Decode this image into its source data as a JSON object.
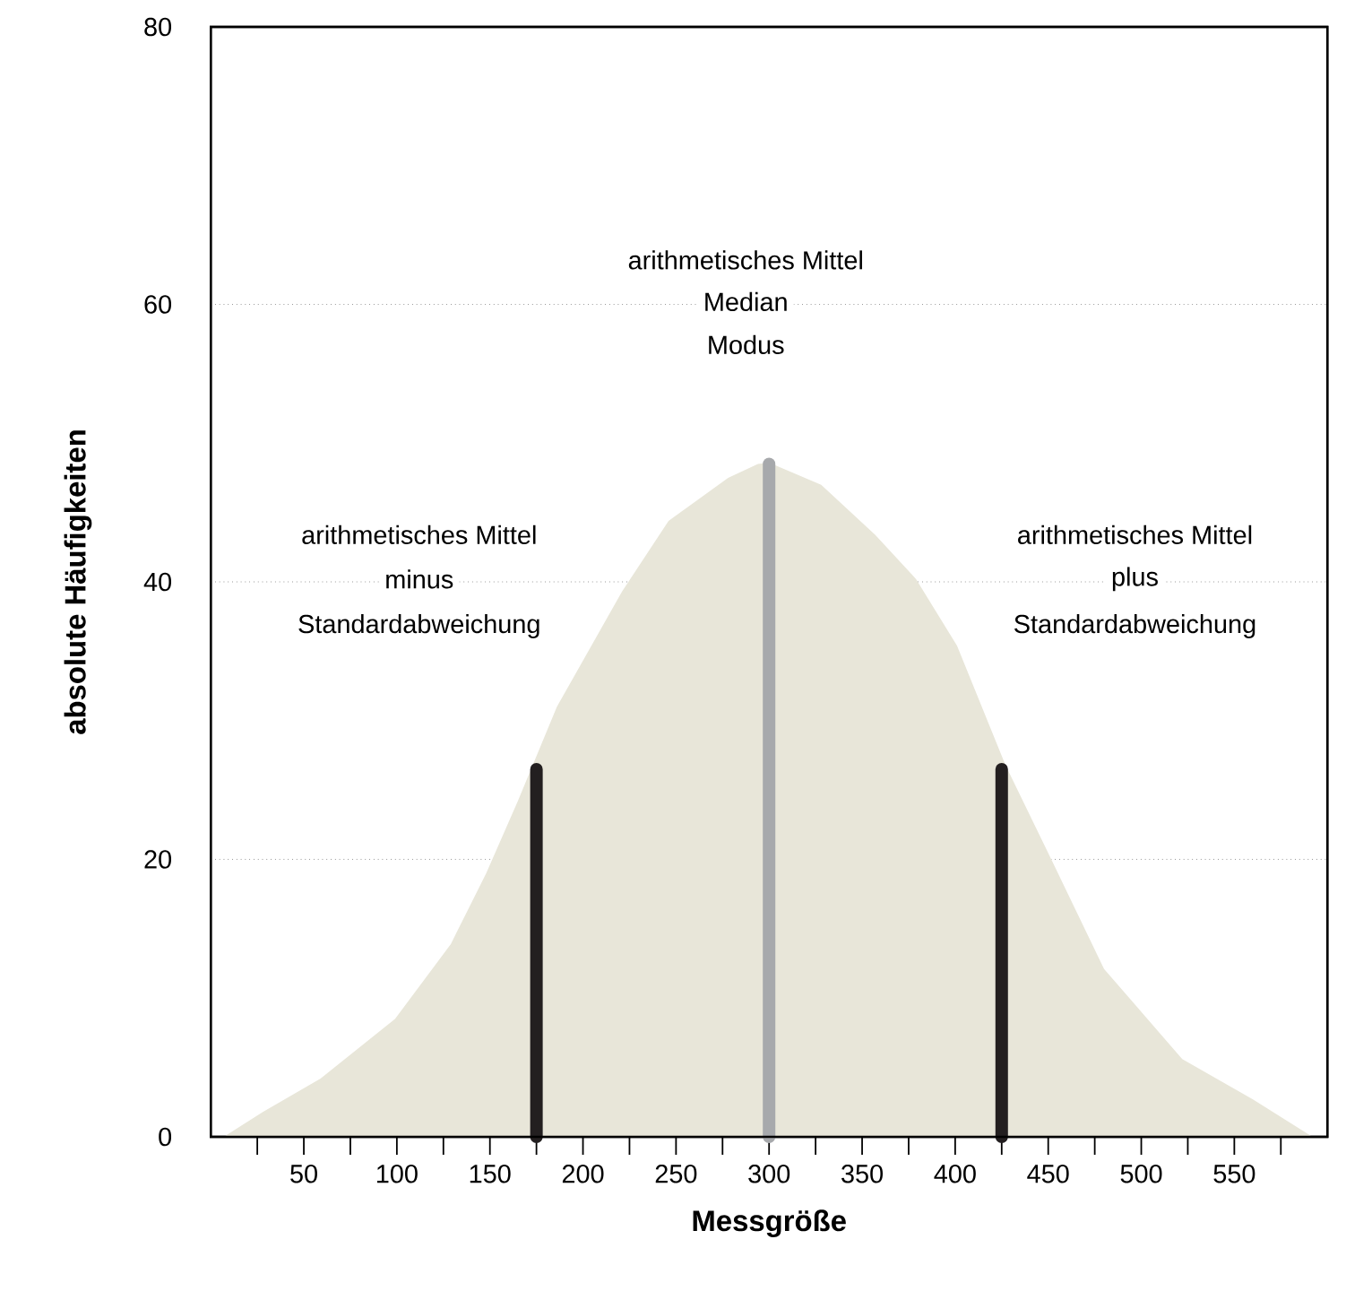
{
  "chart_data": {
    "type": "area",
    "xlabel": "Messgröße",
    "ylabel": "absolute Häufigkeiten",
    "xlim": [
      0,
      600
    ],
    "ylim": [
      0,
      80
    ],
    "xticks": [
      {
        "value": 25,
        "label": null
      },
      50,
      {
        "value": 75,
        "label": null
      },
      100,
      {
        "value": 125,
        "label": null
      },
      150,
      {
        "value": 175,
        "label": null
      },
      200,
      {
        "value": 225,
        "label": null
      },
      250,
      {
        "value": 275,
        "label": null
      },
      300,
      {
        "value": 325,
        "label": null
      },
      350,
      {
        "value": 375,
        "label": null
      },
      400,
      {
        "value": 425,
        "label": null
      },
      450,
      {
        "value": 475,
        "label": null
      },
      500,
      {
        "value": 525,
        "label": null
      },
      550,
      {
        "value": 575,
        "label": null
      }
    ],
    "yticks": [
      0,
      20,
      40,
      60,
      80
    ],
    "grid": "y",
    "annotations": [
      "arithmetisches Mittel",
      "minus",
      "Standardabweichung",
      "arithmetisches Mittel",
      "Median",
      "Modus",
      "arithmetisches Mittel",
      "plus",
      "Standardabweichung"
    ],
    "series": [
      {
        "color": "#e8e6d9",
        "x": [
          7,
          28,
          59,
          99,
          129,
          148,
          165,
          186,
          221,
          246,
          278,
          294,
          300,
          328,
          357,
          379,
          401,
          427,
          452,
          480,
          522,
          560,
          592
        ],
        "values": [
          0,
          1.8,
          4.2,
          8.5,
          13.9,
          19,
          24.2,
          31,
          39.3,
          44.4,
          47.5,
          48.5,
          48.6,
          47,
          43.4,
          40.2,
          35.4,
          26.8,
          19.9,
          12.1,
          5.6,
          2.7,
          0
        ]
      },
      {
        "type": "line",
        "color": "#231f20",
        "x": [
          175,
          175
        ],
        "values": [
          0,
          26.5
        ]
      },
      {
        "type": "line",
        "color": "#a7a9ac",
        "x": [
          300,
          300
        ],
        "values": [
          0,
          48.5
        ]
      },
      {
        "type": "line",
        "color": "#231f20",
        "x": [
          425,
          425
        ],
        "values": [
          0,
          26.5
        ]
      }
    ]
  }
}
